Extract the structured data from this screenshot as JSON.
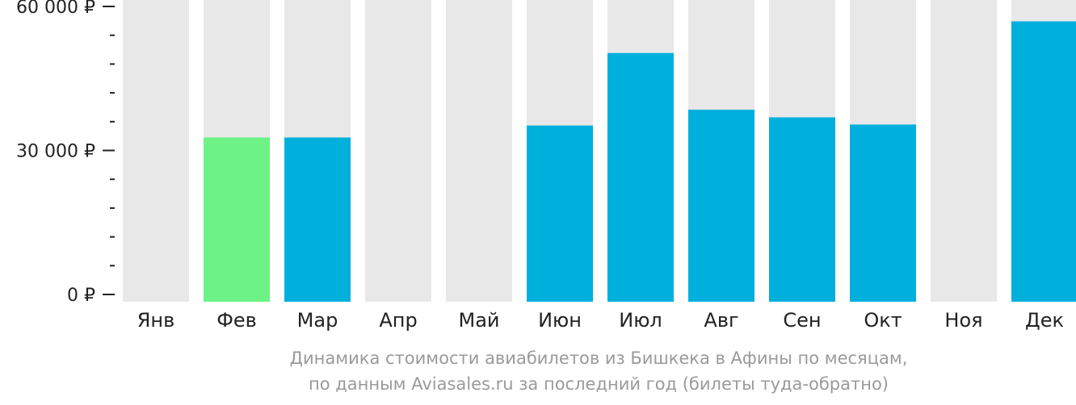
{
  "chart_data": {
    "type": "bar",
    "categories": [
      "Янв",
      "Фев",
      "Мар",
      "Апр",
      "Май",
      "Июн",
      "Июл",
      "Авг",
      "Сен",
      "Окт",
      "Ноя",
      "Дек"
    ],
    "values": [
      null,
      32700,
      32700,
      null,
      null,
      35200,
      50300,
      38500,
      36900,
      35400,
      null,
      56900
    ],
    "highlight_index": 1,
    "ylim": [
      0,
      60000
    ],
    "yticks": [
      {
        "value": 0,
        "label": "0 ₽"
      },
      {
        "value": 30000,
        "label": "30 000 ₽"
      },
      {
        "value": 60000,
        "label": "60 000 ₽"
      }
    ],
    "minor_tick_step": 6000,
    "colors": {
      "bar": "#00b0dc",
      "highlight": "#6cf285",
      "background_bar": "#e8e8e8",
      "text": "#222222",
      "caption": "#9a9a9a"
    }
  },
  "caption": {
    "line1": "Динамика стоимости авиабилетов из Бишкека в Афины по месяцам,",
    "line2": "по данным Aviasales.ru за последний год (билеты туда-обратно)"
  }
}
